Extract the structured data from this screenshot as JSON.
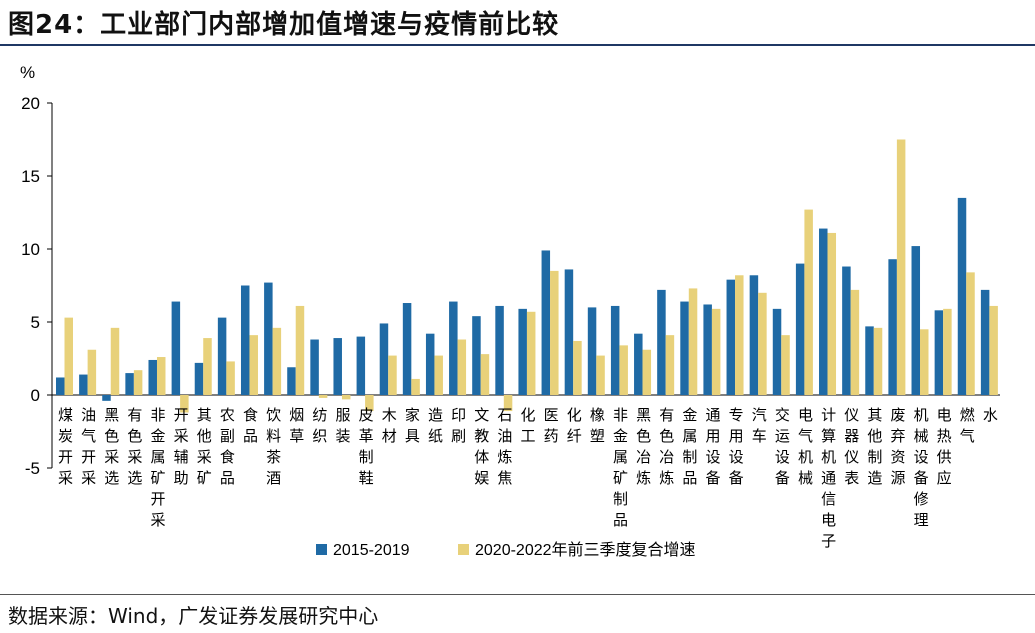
{
  "header": {
    "title": "图24：工业部门内部增加值增速与疫情前比较"
  },
  "footer": {
    "source": "数据来源：Wind，广发证券发展研究中心"
  },
  "colors": {
    "series1": "#1f6aa5",
    "series2": "#e8d17a"
  },
  "chart_data": {
    "type": "bar",
    "title": "",
    "ylabel": "%",
    "ylim": [
      -5,
      20
    ],
    "yticks": [
      "-5",
      "0",
      "5",
      "10",
      "15",
      "20"
    ],
    "categories": [
      "煤炭开采",
      "油气开采",
      "黑色采选",
      "有色采选",
      "非金属矿开采",
      "开采辅助",
      "其他采矿",
      "农副食品",
      "食品",
      "饮料茶酒",
      "烟草",
      "纺织",
      "服装",
      "皮革制鞋",
      "木材",
      "家具",
      "造纸",
      "印刷",
      "文教体娱",
      "石油炼焦",
      "化工",
      "医药",
      "化纤",
      "橡塑",
      "非金属矿制品",
      "黑色冶炼",
      "有色冶炼",
      "金属制品",
      "通用设备",
      "专用设备",
      "汽车",
      "交运设备",
      "电气机械",
      "计算机通信电子",
      "仪器仪表",
      "其他制造",
      "废弃资源",
      "机械设备修理",
      "电热供应",
      "燃气",
      "水"
    ],
    "series": [
      {
        "name": "2015-2019",
        "values": [
          1.2,
          1.4,
          -0.4,
          1.5,
          2.4,
          6.4,
          2.2,
          5.3,
          7.5,
          7.7,
          1.9,
          3.8,
          3.9,
          4.0,
          4.9,
          6.3,
          4.2,
          6.4,
          5.4,
          6.1,
          5.9,
          9.9,
          8.6,
          6.0,
          6.1,
          4.2,
          7.2,
          6.4,
          6.2,
          7.9,
          8.2,
          5.9,
          9.0,
          11.4,
          8.8,
          4.7,
          9.3,
          10.2,
          5.8,
          13.5,
          7.2
        ]
      },
      {
        "name": "2020-2022年前三季度复合增速",
        "values": [
          5.3,
          3.1,
          4.6,
          1.7,
          2.6,
          -1.2,
          3.9,
          2.3,
          4.1,
          4.6,
          6.1,
          -0.2,
          -0.3,
          -1.1,
          2.7,
          1.1,
          2.7,
          3.8,
          2.8,
          -1.1,
          5.7,
          8.5,
          3.7,
          2.7,
          3.4,
          3.1,
          4.1,
          7.3,
          5.9,
          8.2,
          7.0,
          4.1,
          12.7,
          11.1,
          7.2,
          4.6,
          17.5,
          4.5,
          5.9,
          8.4,
          6.1
        ]
      }
    ],
    "legend_position": "bottom-center",
    "grid": false
  }
}
